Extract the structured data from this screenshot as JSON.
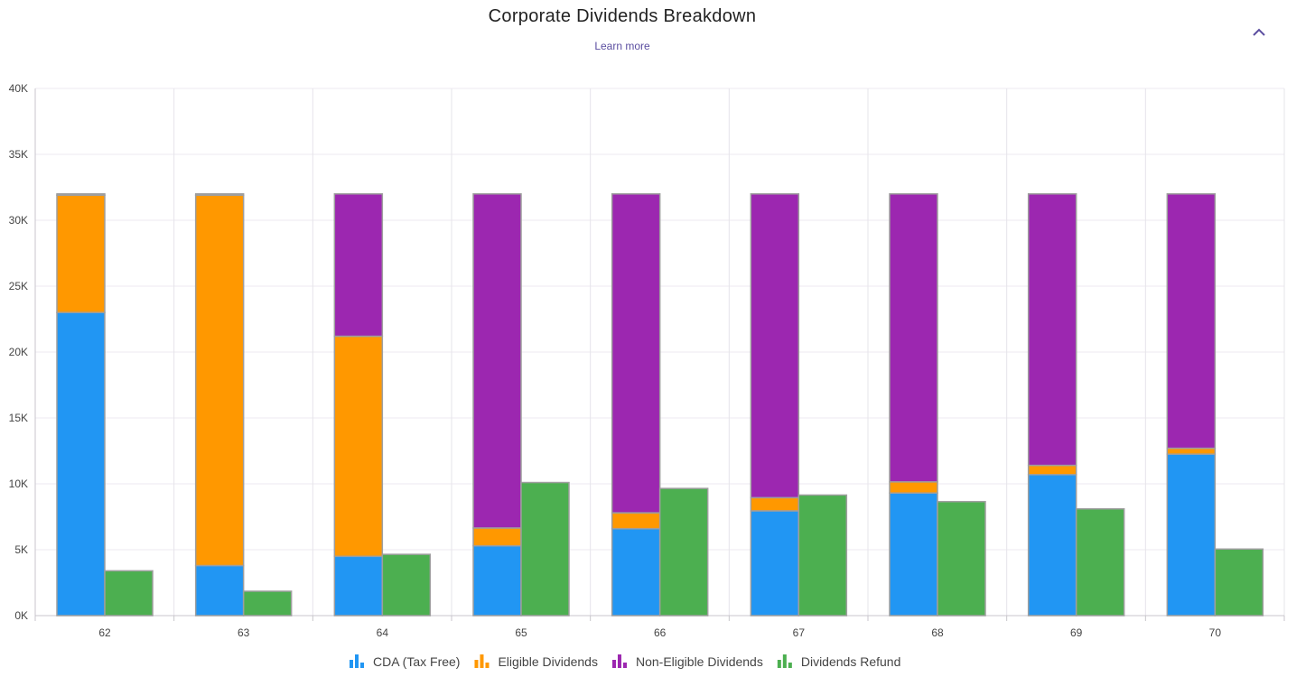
{
  "header": {
    "title": "Corporate Dividends Breakdown",
    "learn_more": "Learn more",
    "collapse_icon": "chevron-up-icon"
  },
  "chart_data": {
    "type": "bar",
    "stacked": true,
    "title": "Corporate Dividends Breakdown",
    "xlabel": "",
    "ylabel": "",
    "categories": [
      "62",
      "63",
      "64",
      "65",
      "66",
      "67",
      "68",
      "69",
      "70"
    ],
    "ylim": [
      0,
      40000
    ],
    "yticks": [
      "0K",
      "5K",
      "10K",
      "15K",
      "20K",
      "25K",
      "30K",
      "35K",
      "40K"
    ],
    "grid": true,
    "legend_position": "bottom",
    "series": [
      {
        "name": "CDA (Tax Free)",
        "stack": "a",
        "color": "#2196F3",
        "values": [
          23000,
          3800,
          4500,
          5300,
          6600,
          7950,
          9300,
          10700,
          12250
        ]
      },
      {
        "name": "Eligible Dividends",
        "stack": "a",
        "color": "#FF9800",
        "values": [
          8900,
          28100,
          16700,
          1350,
          1200,
          1000,
          850,
          700,
          450
        ]
      },
      {
        "name": "Non-Eligible Dividends",
        "stack": "a",
        "color": "#9C27B0",
        "values": [
          100,
          100,
          10800,
          25350,
          24200,
          23050,
          21850,
          20600,
          19300
        ]
      },
      {
        "name": "Dividends Refund",
        "stack": "b",
        "color": "#4CAF50",
        "values": [
          3400,
          1850,
          4650,
          10100,
          9650,
          9150,
          8650,
          8100,
          5050
        ]
      }
    ]
  }
}
